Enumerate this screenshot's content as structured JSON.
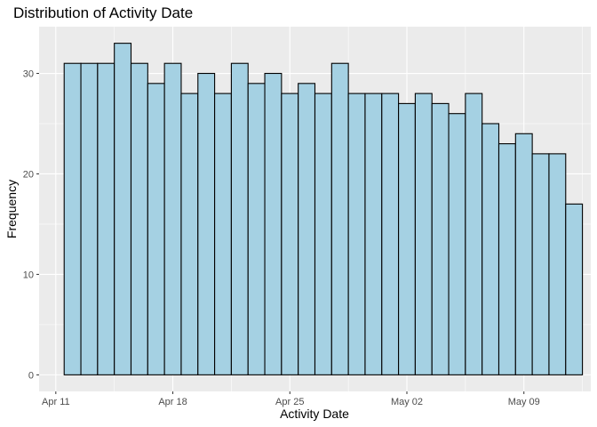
{
  "chart_data": {
    "type": "bar",
    "title": "Distribution of Activity Date",
    "xlabel": "Activity Date",
    "ylabel": "Frequency",
    "bin_width_days": 1,
    "x": [
      "2016-04-12",
      "2016-04-13",
      "2016-04-14",
      "2016-04-15",
      "2016-04-16",
      "2016-04-17",
      "2016-04-18",
      "2016-04-19",
      "2016-04-20",
      "2016-04-21",
      "2016-04-22",
      "2016-04-23",
      "2016-04-24",
      "2016-04-25",
      "2016-04-26",
      "2016-04-27",
      "2016-04-28",
      "2016-04-29",
      "2016-04-30",
      "2016-05-01",
      "2016-05-02",
      "2016-05-03",
      "2016-05-04",
      "2016-05-05",
      "2016-05-06",
      "2016-05-07",
      "2016-05-08",
      "2016-05-09",
      "2016-05-10",
      "2016-05-11",
      "2016-05-12"
    ],
    "values": [
      31,
      31,
      31,
      33,
      31,
      29,
      31,
      28,
      30,
      28,
      31,
      29,
      30,
      28,
      29,
      28,
      31,
      28,
      28,
      28,
      27,
      28,
      27,
      26,
      28,
      25,
      23,
      24,
      22,
      22,
      17
    ],
    "xlim": [
      "2016-04-10",
      "2016-05-13"
    ],
    "ylim": [
      -1.65,
      34.65
    ],
    "x_ticks": [
      "2016-04-11",
      "2016-04-18",
      "2016-04-25",
      "2016-05-02",
      "2016-05-09"
    ],
    "x_tick_labels": [
      "Apr 11",
      "Apr 18",
      "Apr 25",
      "May 02",
      "May 09"
    ],
    "y_ticks": [
      0,
      10,
      20,
      30
    ],
    "grid": true,
    "panel_color": "#ebebeb",
    "grid_color": "#ffffff",
    "bar_fill": "#a5d1e3",
    "bar_outline": "#000000",
    "tick_color": "#333333",
    "tick_label_color": "#4d4d4d"
  }
}
